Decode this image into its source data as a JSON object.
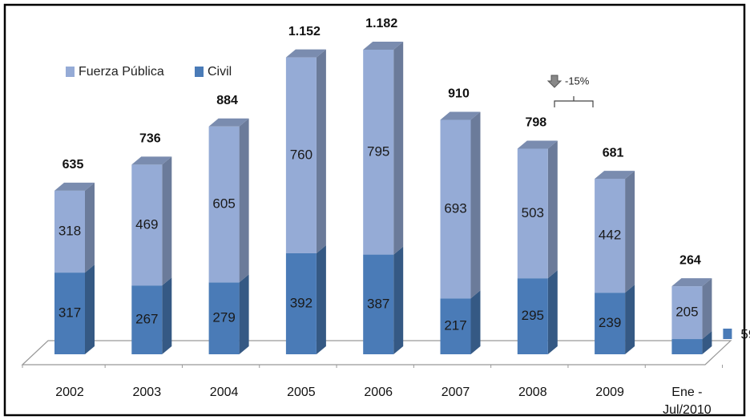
{
  "chart_data": {
    "type": "stacked_bar_3d",
    "categories": [
      "2002",
      "2003",
      "2004",
      "2005",
      "2006",
      "2007",
      "2008",
      "2009",
      "Ene - Jul/2010"
    ],
    "series": [
      {
        "name": "Fuerza Pública",
        "color": "#95abd6",
        "values": [
          318,
          469,
          605,
          760,
          795,
          693,
          503,
          442,
          205
        ]
      },
      {
        "name": "Civil",
        "color": "#4a7bb7",
        "values": [
          317,
          267,
          279,
          392,
          387,
          217,
          295,
          239,
          59
        ]
      }
    ],
    "totals": {
      "values": [
        635,
        736,
        884,
        1152,
        1182,
        910,
        798,
        681,
        264
      ],
      "value_labels": [
        "635",
        "736",
        "884",
        "1.152",
        "1.182",
        "910",
        "798",
        "681",
        "264"
      ]
    },
    "annotation": "-15%"
  }
}
